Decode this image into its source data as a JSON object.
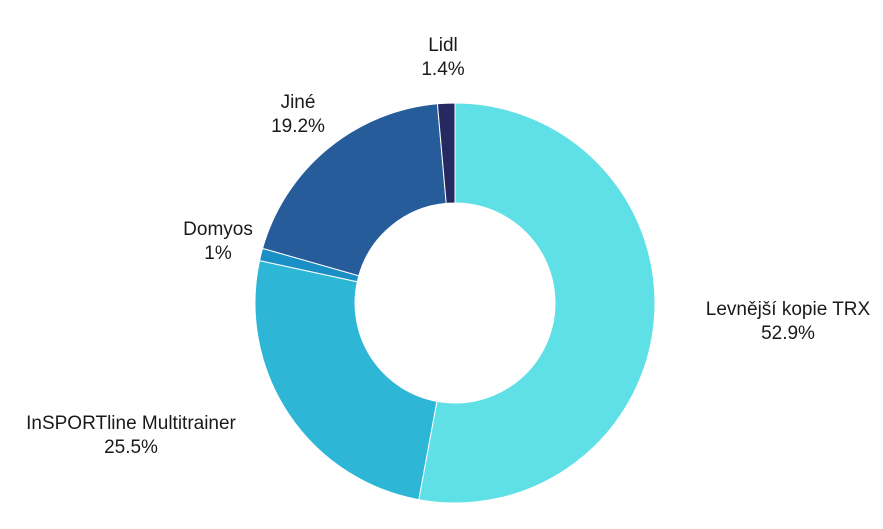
{
  "chart_data": {
    "type": "pie",
    "donut": true,
    "legend": "none",
    "slices": [
      {
        "label": "Levnější kopie TRX",
        "value": 52.9,
        "display": "52.9%",
        "color": "#5ee0e6"
      },
      {
        "label": "InSPORTline Multitrainer",
        "value": 25.5,
        "display": "25.5%",
        "color": "#2eb6d6"
      },
      {
        "label": "Domyos",
        "value": 1.0,
        "display": "1%",
        "color": "#1a8fc6"
      },
      {
        "label": "Jiné",
        "value": 19.2,
        "display": "19.2%",
        "color": "#275c9b"
      },
      {
        "label": "Lidl",
        "value": 1.4,
        "display": "1.4%",
        "color": "#26295f"
      }
    ]
  }
}
